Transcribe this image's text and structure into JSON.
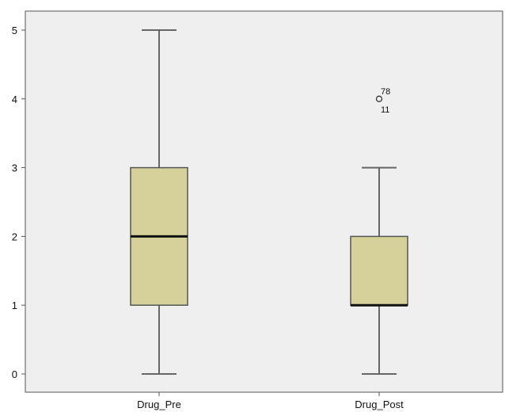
{
  "chart_data": {
    "type": "boxplot",
    "title": "",
    "xlabel": "",
    "ylabel": "",
    "ylim": [
      0,
      5
    ],
    "yticks": [
      0,
      1,
      2,
      3,
      4,
      5
    ],
    "grid": false,
    "categories": [
      "Drug_Pre",
      "Drug_Post"
    ],
    "boxes": [
      {
        "category": "Drug_Pre",
        "min": 0,
        "q1": 1,
        "median": 2,
        "q3": 3,
        "max": 5,
        "outliers": []
      },
      {
        "category": "Drug_Post",
        "min": 0,
        "q1": 1,
        "median": 1,
        "q3": 2,
        "max": 3,
        "outliers": [
          {
            "value": 4,
            "labels": [
              "78",
              "11"
            ]
          }
        ]
      }
    ],
    "colors": {
      "plot_background": "#efefef",
      "box_fill": "#d6d19a",
      "box_stroke": "#555555",
      "median": "#111111",
      "whisker": "#666666",
      "frame": "#555555"
    }
  }
}
